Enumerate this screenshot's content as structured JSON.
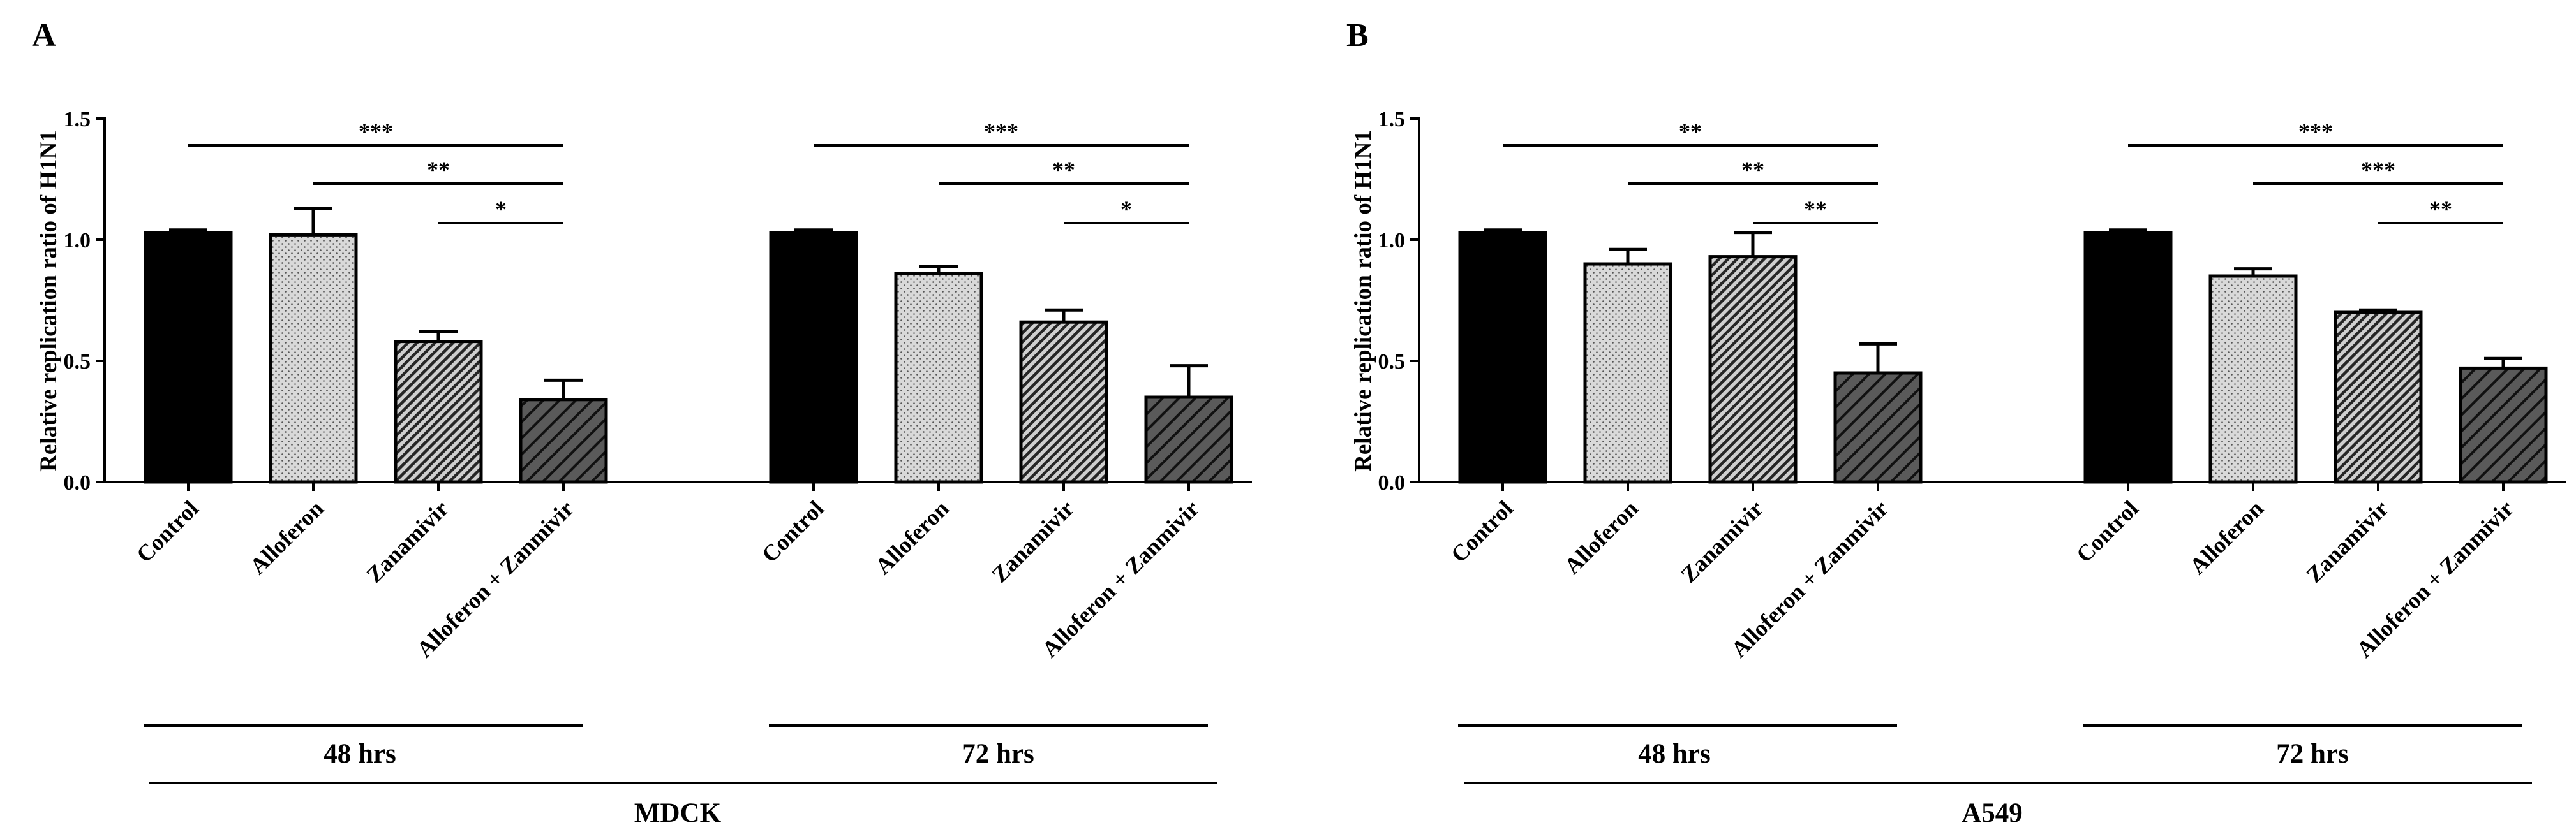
{
  "colors": {
    "axis": "#000000",
    "control": "#000000",
    "alloferon": "#d9d9d9",
    "zanamivir": "#8c8c8c",
    "combo": "#595959",
    "background": "#ffffff"
  },
  "chart_data": [
    {
      "type": "bar",
      "panel_label": "A",
      "ylabel": "Relative replication ratio of H1N1",
      "ylim": [
        0,
        1.5
      ],
      "yticks": [
        "0.0",
        "0.5",
        "1.0",
        "1.5"
      ],
      "cell_line": "MDCK",
      "groups": [
        {
          "label": "48 hrs",
          "categories": [
            "Control",
            "Alloferon",
            "Zanamivir",
            "Alloferon + Zanmivir"
          ],
          "values": [
            1.03,
            1.02,
            0.58,
            0.34
          ],
          "errors": [
            0.01,
            0.11,
            0.04,
            0.08
          ],
          "significance": [
            {
              "from": 0,
              "to": 3,
              "label": "***"
            },
            {
              "from": 1,
              "to": 3,
              "label": "**"
            },
            {
              "from": 2,
              "to": 3,
              "label": "*"
            }
          ]
        },
        {
          "label": "72 hrs",
          "categories": [
            "Control",
            "Alloferon",
            "Zanamivir",
            "Alloferon + Zanmivir"
          ],
          "values": [
            1.03,
            0.86,
            0.66,
            0.35
          ],
          "errors": [
            0.01,
            0.03,
            0.05,
            0.13
          ],
          "significance": [
            {
              "from": 0,
              "to": 3,
              "label": "***"
            },
            {
              "from": 1,
              "to": 3,
              "label": "**"
            },
            {
              "from": 2,
              "to": 3,
              "label": "*"
            }
          ]
        }
      ]
    },
    {
      "type": "bar",
      "panel_label": "B",
      "ylabel": "Relative replication ratio of H1N1",
      "ylim": [
        0,
        1.5
      ],
      "yticks": [
        "0.0",
        "0.5",
        "1.0",
        "1.5"
      ],
      "cell_line": "A549",
      "groups": [
        {
          "label": "48 hrs",
          "categories": [
            "Control",
            "Alloferon",
            "Zanamivir",
            "Alloferon + Zanmivir"
          ],
          "values": [
            1.03,
            0.9,
            0.93,
            0.45
          ],
          "errors": [
            0.01,
            0.06,
            0.1,
            0.12
          ],
          "significance": [
            {
              "from": 0,
              "to": 3,
              "label": "**"
            },
            {
              "from": 1,
              "to": 3,
              "label": "**"
            },
            {
              "from": 2,
              "to": 3,
              "label": "**"
            }
          ]
        },
        {
          "label": "72 hrs",
          "categories": [
            "Control",
            "Alloferon",
            "Zanamivir",
            "Alloferon + Zanmivir"
          ],
          "values": [
            1.03,
            0.85,
            0.7,
            0.47
          ],
          "errors": [
            0.01,
            0.03,
            0.01,
            0.04
          ],
          "significance": [
            {
              "from": 0,
              "to": 3,
              "label": "***"
            },
            {
              "from": 1,
              "to": 3,
              "label": "***"
            },
            {
              "from": 2,
              "to": 3,
              "label": "**"
            }
          ]
        }
      ]
    }
  ]
}
